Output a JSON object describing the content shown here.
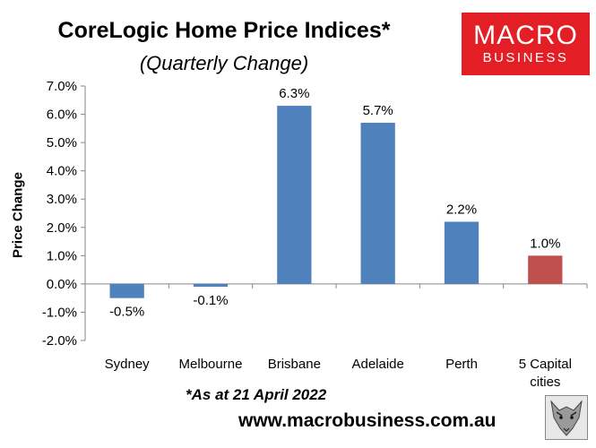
{
  "title": "CoreLogic Home Price Indices*",
  "subtitle": "(Quarterly Change)",
  "logo": {
    "line1": "MACRO",
    "line2": "BUSINESS"
  },
  "footnote": "*As at 21 April 2022",
  "website": "www.macrobusiness.com.au",
  "chart_data": {
    "type": "bar",
    "categories": [
      "Sydney",
      "Melbourne",
      "Brisbane",
      "Adelaide",
      "Perth",
      "5 Capital cities"
    ],
    "category_lines": [
      [
        "Sydney"
      ],
      [
        "Melbourne"
      ],
      [
        "Brisbane"
      ],
      [
        "Adelaide"
      ],
      [
        "Perth"
      ],
      [
        "5 Capital",
        "cities"
      ]
    ],
    "values": [
      -0.5,
      -0.1,
      6.3,
      5.7,
      2.2,
      1.0
    ],
    "data_labels": [
      "-0.5%",
      "-0.1%",
      "6.3%",
      "5.7%",
      "2.2%",
      "1.0%"
    ],
    "colors": [
      "#4f81bd",
      "#4f81bd",
      "#4f81bd",
      "#4f81bd",
      "#4f81bd",
      "#c0504d"
    ],
    "ylabel": "Price Change",
    "xlabel": "",
    "ylim": [
      -2.0,
      7.0
    ],
    "yticks": [
      -2.0,
      -1.0,
      0.0,
      1.0,
      2.0,
      3.0,
      4.0,
      5.0,
      6.0,
      7.0
    ],
    "ytick_labels": [
      "-2.0%",
      "-1.0%",
      "0.0%",
      "1.0%",
      "2.0%",
      "3.0%",
      "4.0%",
      "5.0%",
      "6.0%",
      "7.0%"
    ],
    "grid": false,
    "legend": "none"
  }
}
